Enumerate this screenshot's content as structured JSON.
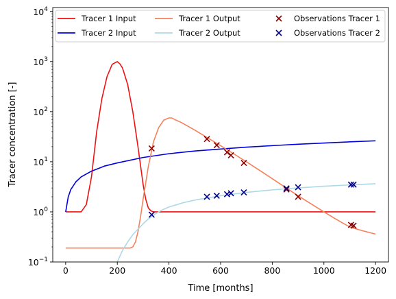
{
  "chart_data": {
    "type": "line",
    "xlabel": "Time [months]",
    "ylabel": "Tracer concentration [-]",
    "xlim": [
      -50,
      1250
    ],
    "ylim": [
      0.1,
      12000
    ],
    "yscale": "log",
    "x_ticks": [
      0,
      200,
      400,
      600,
      800,
      1000,
      1200
    ],
    "y_ticks": [
      {
        "value": 0.1,
        "base": "10",
        "exp": "−1"
      },
      {
        "value": 1,
        "base": "10",
        "exp": "0"
      },
      {
        "value": 10,
        "base": "10",
        "exp": "1"
      },
      {
        "value": 100,
        "base": "10",
        "exp": "2"
      },
      {
        "value": 1000,
        "base": "10",
        "exp": "3"
      },
      {
        "value": 10000,
        "base": "10",
        "exp": "4"
      }
    ],
    "grid": false,
    "legend_position": "top",
    "series": [
      {
        "name": "Tracer 1 Input",
        "kind": "line",
        "color": "#ee1111",
        "x": [
          0,
          20,
          40,
          60,
          80,
          100,
          120,
          140,
          160,
          180,
          200,
          210,
          220,
          240,
          260,
          280,
          300,
          310,
          320,
          330,
          340,
          400,
          600,
          800,
          1000,
          1200
        ],
        "y": [
          1.0,
          1.0,
          1.0,
          1.0,
          1.4,
          5.0,
          40,
          180,
          500,
          880,
          1000,
          900,
          750,
          350,
          100,
          20,
          3.5,
          1.8,
          1.2,
          1.05,
          1.0,
          1.0,
          1.0,
          1.0,
          1.0,
          1.0
        ]
      },
      {
        "name": "Tracer 2 Input",
        "kind": "line",
        "color": "#0000dd",
        "x": [
          0,
          10,
          20,
          40,
          60,
          100,
          150,
          200,
          300,
          400,
          500,
          600,
          700,
          800,
          900,
          1000,
          1100,
          1200
        ],
        "y": [
          1.0,
          2.0,
          2.8,
          4.0,
          5.0,
          6.5,
          8.2,
          9.5,
          12.2,
          14.5,
          16.4,
          18.0,
          19.6,
          21.0,
          22.4,
          23.7,
          25.0,
          26.2
        ]
      },
      {
        "name": "Tracer 1 Output",
        "kind": "line",
        "color": "#f5805a",
        "x": [
          0,
          100,
          200,
          250,
          260,
          270,
          280,
          290,
          300,
          320,
          340,
          360,
          380,
          400,
          410,
          450,
          500,
          550,
          600,
          650,
          700,
          750,
          800,
          850,
          900,
          950,
          1000,
          1050,
          1100,
          1150,
          1200
        ],
        "y": [
          0.19,
          0.19,
          0.19,
          0.19,
          0.2,
          0.25,
          0.4,
          0.8,
          1.8,
          8.0,
          25.0,
          48.0,
          68.0,
          75.0,
          75.0,
          60.0,
          43.0,
          30.0,
          21.0,
          14.5,
          10.0,
          6.8,
          4.6,
          3.1,
          2.1,
          1.45,
          1.0,
          0.7,
          0.5,
          0.42,
          0.36
        ]
      },
      {
        "name": "Tracer 2 Output",
        "kind": "line",
        "color": "#add8e6",
        "x": [
          200,
          210,
          220,
          240,
          260,
          280,
          300,
          320,
          340,
          360,
          380,
          400,
          450,
          500,
          550,
          600,
          700,
          800,
          900,
          1000,
          1100,
          1200
        ],
        "y": [
          0.1,
          0.13,
          0.17,
          0.25,
          0.35,
          0.45,
          0.58,
          0.72,
          0.86,
          1.0,
          1.13,
          1.25,
          1.5,
          1.72,
          1.9,
          2.1,
          2.45,
          2.75,
          3.0,
          3.25,
          3.45,
          3.65
        ]
      },
      {
        "name": "Observations Tracer 1",
        "kind": "scatter",
        "marker": "x",
        "color": "#8b0000",
        "x": [
          333,
          547,
          585,
          625,
          640,
          690,
          855,
          900,
          1105,
          1115
        ],
        "y": [
          18.5,
          28.5,
          21.5,
          15.5,
          13.5,
          9.5,
          2.8,
          2.0,
          0.55,
          0.53
        ]
      },
      {
        "name": "Observations Tracer 2",
        "kind": "scatter",
        "marker": "x",
        "color": "#00008b",
        "x": [
          333,
          547,
          585,
          625,
          640,
          690,
          855,
          900,
          1105,
          1115
        ],
        "y": [
          0.88,
          2.0,
          2.1,
          2.25,
          2.35,
          2.45,
          2.95,
          3.1,
          3.5,
          3.5
        ]
      }
    ]
  }
}
